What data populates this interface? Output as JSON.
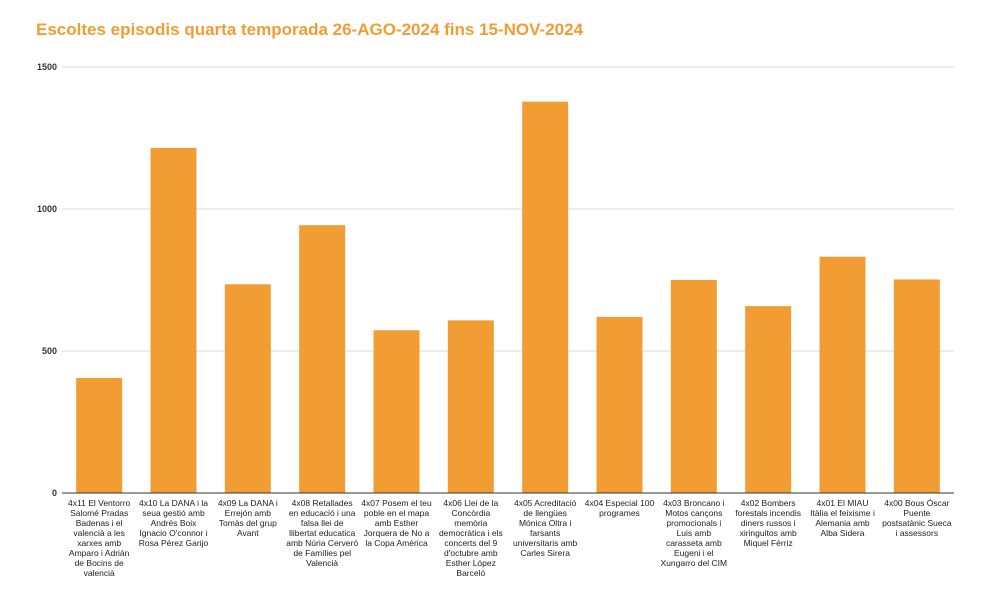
{
  "chart_data": {
    "type": "bar",
    "title": "Escoltes episodis quarta temporada 26-AGO-2024 fins 15-NOV-2024",
    "xlabel": "",
    "ylabel": "",
    "ylim": [
      0,
      1500
    ],
    "yticks": [
      0,
      500,
      1000,
      1500
    ],
    "grid": true,
    "legend": "none",
    "bar_color": "#f29d33",
    "categories": [
      "4x11 El Ventorro Salomé Pradas Badenas i el valencià a les xarxes amb Amparo i Adrián de Bocins de valencià",
      "4x10 La DANA i la seua gestió amb Andrés Boix Ignacio O'connor i Rosa Pérez Garijo",
      "4x09 La DANA i Errejón amb Tomàs del grup Avant",
      "4x08 Retallades en educació i una falsa llei de llibertat educatica amb Núria Cerveró de Famílies pel Valencià",
      "4x07 Posem el teu poble en el mapa amb Esther Jorquera de No a la Copa Amèrica",
      "4x06 Llei de la Concòrdia memòria democràtica i els concerts del 9 d'octubre amb Esther López Barceló",
      "4x05 Acreditació de llengües Mónica Oltra i farsants universitaris amb Carles Sirera",
      "4x04 Especial 100 programes",
      "4x03 Broncano i Motos cançons promocionals i Luis amb carasseta amb Eugeni i el Xungarro del CIM",
      "4x02 Bombers forestals incendis diners russos i xiringuitos amb Miquel Férriz",
      "4x01 El MIAU Itàlia el feixisme i Alemania amb Alba Sidera",
      "4x00 Bous Óscar Puente postsatànic Sueca i assessors"
    ],
    "values": [
      405,
      1215,
      735,
      943,
      573,
      608,
      1378,
      620,
      750,
      658,
      832,
      752
    ]
  }
}
